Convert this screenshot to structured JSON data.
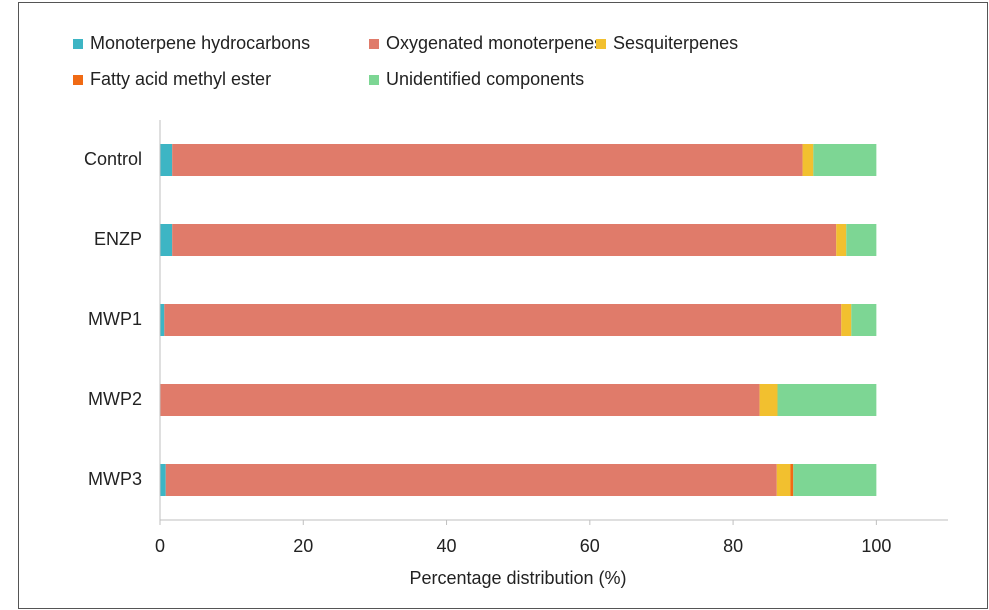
{
  "chart_data": {
    "type": "stacked_barh",
    "xlabel": "Percentage distribution (%)",
    "categories": [
      "Control",
      "ENZP",
      "MWP1",
      "MWP2",
      "MWP3"
    ],
    "series": [
      {
        "name": "Monoterpene hydrocarbons",
        "color": "#3db5c4",
        "values": [
          1.7,
          1.7,
          0.6,
          0,
          0.8
        ]
      },
      {
        "name": "Oxygenated monoterpenes",
        "color": "#e07b6a",
        "values": [
          88.0,
          92.7,
          94.5,
          83.7,
          85.3
        ]
      },
      {
        "name": "Sesquiterpenes",
        "color": "#f2c02f",
        "values": [
          1.5,
          1.4,
          1.4,
          2.5,
          1.9
        ]
      },
      {
        "name": "Fatty acid methyl ester",
        "color": "#f06a14",
        "values": [
          0,
          0,
          0,
          0,
          0.4
        ]
      },
      {
        "name": "Unidentified components",
        "color": "#7dd694",
        "values": [
          8.8,
          4.2,
          3.5,
          13.8,
          11.6
        ]
      }
    ],
    "xlim": [
      0,
      110
    ],
    "xticks": [
      0,
      20,
      40,
      60,
      80,
      100
    ],
    "grid": false,
    "legend": "top"
  }
}
